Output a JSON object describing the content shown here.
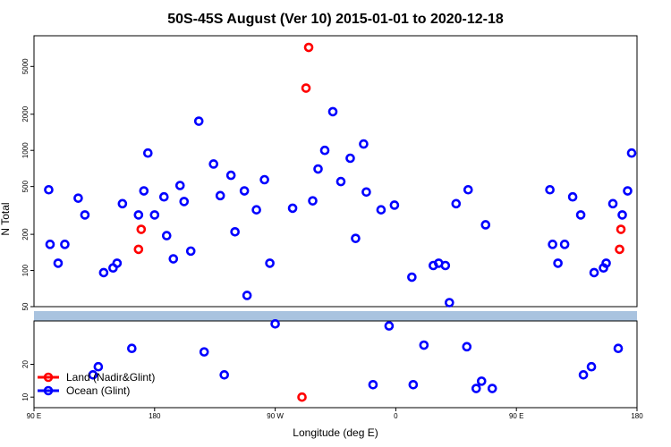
{
  "chart_data": {
    "type": "scatter",
    "title": "50S-45S August (Ver 10)   2015-01-01 to 2020-12-18",
    "xlabel": "Longitude (deg E)",
    "ylabel": "N Total",
    "x_ticks": [
      {
        "pos": 90,
        "label": "90 E"
      },
      {
        "pos": 180,
        "label": "180"
      },
      {
        "pos": 270,
        "label": "90 W"
      },
      {
        "pos": 360,
        "label": "0"
      },
      {
        "pos": 450,
        "label": "90 E"
      },
      {
        "pos": 540,
        "label": "180"
      }
    ],
    "xlim": [
      90,
      540
    ],
    "scale": "log",
    "upper_panel": {
      "ylim": [
        50,
        9000
      ],
      "y_ticks": [
        50,
        100,
        200,
        500,
        1000,
        2000,
        5000
      ]
    },
    "lower_panel": {
      "ylim": [
        8,
        50
      ],
      "y_ticks": [
        10,
        20
      ]
    },
    "band_color": "#a9c3df",
    "series": [
      {
        "name": "Land (Nadir&Glint)",
        "color": "#ff0000",
        "points": [
          [
            168,
            150
          ],
          [
            170,
            220
          ],
          [
            290,
            10
          ],
          [
            293,
            3300
          ],
          [
            295,
            7200
          ],
          [
            527,
            150
          ],
          [
            528,
            220
          ]
        ]
      },
      {
        "name": "Ocean (Glint)",
        "color": "#0000ff",
        "points": [
          [
            101,
            470
          ],
          [
            102,
            165
          ],
          [
            108,
            115
          ],
          [
            113,
            165
          ],
          [
            123,
            400
          ],
          [
            128,
            290
          ],
          [
            134,
            16
          ],
          [
            138,
            19
          ],
          [
            142,
            96
          ],
          [
            149,
            105
          ],
          [
            152,
            115
          ],
          [
            156,
            360
          ],
          [
            163,
            28
          ],
          [
            168,
            290
          ],
          [
            172,
            460
          ],
          [
            175,
            950
          ],
          [
            180,
            290
          ],
          [
            187,
            410
          ],
          [
            189,
            195
          ],
          [
            194,
            125
          ],
          [
            199,
            510
          ],
          [
            202,
            375
          ],
          [
            207,
            145
          ],
          [
            213,
            1750
          ],
          [
            217,
            26
          ],
          [
            224,
            770
          ],
          [
            229,
            420
          ],
          [
            232,
            16
          ],
          [
            237,
            620
          ],
          [
            240,
            210
          ],
          [
            247,
            460
          ],
          [
            249,
            62
          ],
          [
            256,
            320
          ],
          [
            262,
            570
          ],
          [
            266,
            115
          ],
          [
            270,
            47
          ],
          [
            283,
            330
          ],
          [
            298,
            380
          ],
          [
            302,
            700
          ],
          [
            307,
            1000
          ],
          [
            313,
            2100
          ],
          [
            319,
            550
          ],
          [
            326,
            860
          ],
          [
            330,
            185
          ],
          [
            336,
            1130
          ],
          [
            338,
            450
          ],
          [
            343,
            13
          ],
          [
            349,
            320
          ],
          [
            355,
            45
          ],
          [
            359,
            350
          ],
          [
            372,
            88
          ],
          [
            373,
            13
          ],
          [
            381,
            30
          ],
          [
            388,
            110
          ],
          [
            392,
            115
          ],
          [
            397,
            110
          ],
          [
            400,
            54
          ],
          [
            405,
            360
          ],
          [
            413,
            29
          ],
          [
            414,
            470
          ],
          [
            420,
            12
          ],
          [
            424,
            14
          ],
          [
            427,
            240
          ],
          [
            432,
            12
          ],
          [
            475,
            470
          ],
          [
            477,
            165
          ],
          [
            481,
            115
          ],
          [
            486,
            165
          ],
          [
            492,
            410
          ],
          [
            498,
            290
          ],
          [
            500,
            16
          ],
          [
            506,
            19
          ],
          [
            508,
            96
          ],
          [
            515,
            105
          ],
          [
            517,
            115
          ],
          [
            522,
            360
          ],
          [
            526,
            28
          ],
          [
            529,
            290
          ],
          [
            533,
            460
          ],
          [
            536,
            950
          ]
        ]
      }
    ],
    "legend": {
      "position": "bottom-left",
      "entries": [
        "Land (Nadir&Glint)",
        "Ocean (Glint)"
      ]
    }
  }
}
